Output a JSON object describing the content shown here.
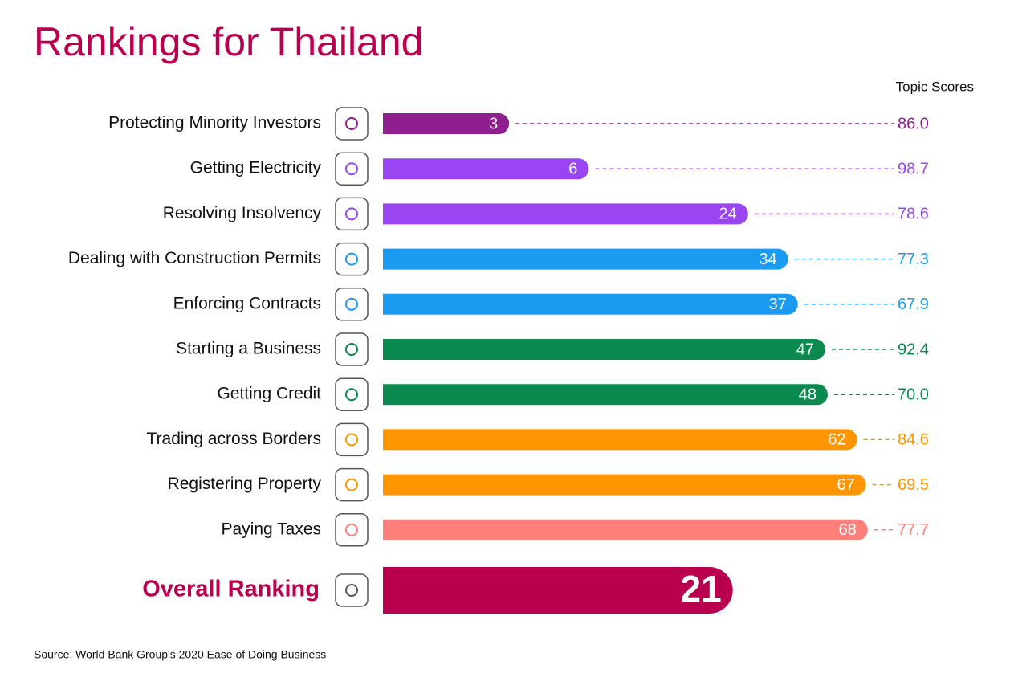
{
  "chart_data": {
    "type": "bar",
    "title": "Rankings for Thailand",
    "categories": [
      "Protecting Minority Investors",
      "Getting Electricity",
      "Resolving Insolvency",
      "Dealing with Construction Permits",
      "Enforcing Contracts",
      "Starting a Business",
      "Getting Credit",
      "Trading across Borders",
      "Registering Property",
      "Paying Taxes"
    ],
    "values": [
      3,
      6,
      24,
      34,
      37,
      47,
      48,
      62,
      67,
      68
    ],
    "colors": [
      "#8f1f8f",
      "#9b45f2",
      "#9b45f2",
      "#1a9af0",
      "#1a9af0",
      "#0a8a4f",
      "#0a8a4f",
      "#ff9500",
      "#ff9500",
      "#ff7f7a"
    ],
    "scores": {
      "name": "Topic Scores",
      "values": [
        86.0,
        98.7,
        78.6,
        77.3,
        67.9,
        92.4,
        70.0,
        84.6,
        69.5,
        77.7
      ],
      "value_labels": [
        "86.0",
        "98.7",
        "78.6",
        "77.3",
        "67.9",
        "92.4",
        "70.0",
        "84.6",
        "69.5",
        "77.7"
      ]
    },
    "overall": {
      "label": "Overall Ranking",
      "value": 21,
      "color": "#b8004f"
    },
    "log_scale": true,
    "xlim": [
      1,
      100
    ],
    "source": "Source: World Bank Group's 2020 Ease of Doing Business"
  }
}
